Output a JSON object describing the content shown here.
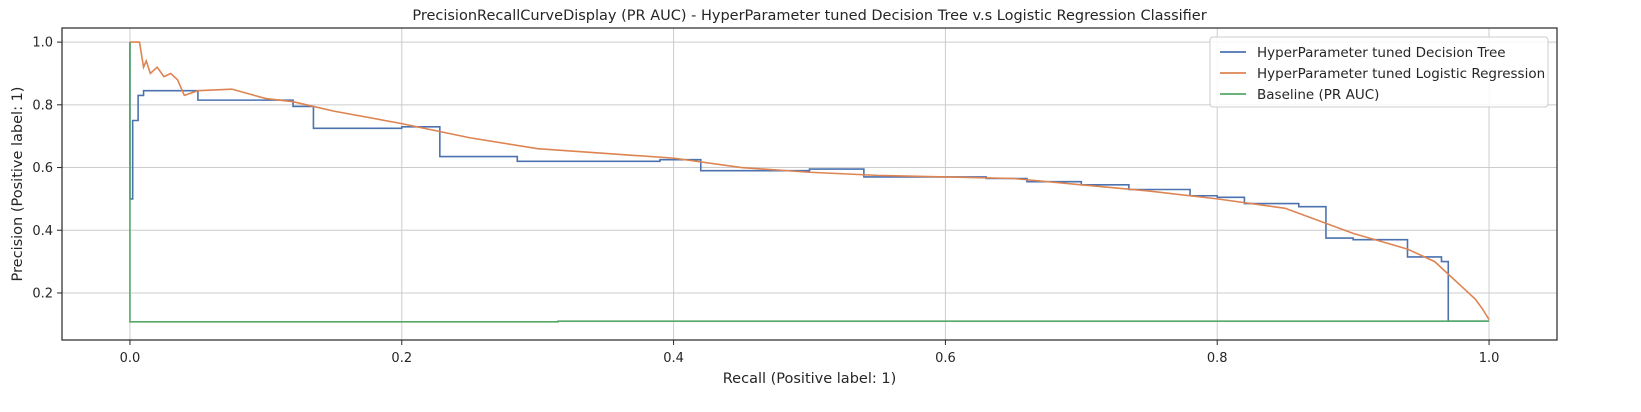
{
  "chart_data": {
    "type": "line",
    "title": "PrecisionRecallCurveDisplay (PR AUC) - HyperParameter tuned Decision Tree v.s Logistic Regression Classifier",
    "xlabel": "Recall (Positive label: 1)",
    "ylabel": "Precision (Positive label: 1)",
    "xlim": [
      -0.05,
      1.05
    ],
    "ylim": [
      0.05,
      1.045
    ],
    "xticks": [
      0.0,
      0.2,
      0.4,
      0.6,
      0.8,
      1.0
    ],
    "xtick_labels": [
      "0.0",
      "0.2",
      "0.4",
      "0.6",
      "0.8",
      "1.0"
    ],
    "yticks": [
      0.2,
      0.4,
      0.6,
      0.8,
      1.0
    ],
    "ytick_labels": [
      "0.2",
      "0.4",
      "0.6",
      "0.8",
      "1.0"
    ],
    "grid": true,
    "legend_position": "top-right",
    "series": [
      {
        "name": "HyperParameter tuned Decision Tree",
        "color": "#4c72b0",
        "step": true,
        "x": [
          0.0,
          0.0,
          0.002,
          0.006,
          0.01,
          0.05,
          0.12,
          0.135,
          0.2,
          0.228,
          0.285,
          0.39,
          0.42,
          0.5,
          0.52,
          0.54,
          0.6,
          0.63,
          0.66,
          0.7,
          0.735,
          0.78,
          0.8,
          0.82,
          0.86,
          0.88,
          0.9,
          0.94,
          0.965,
          0.97,
          1.0
        ],
        "y": [
          1.0,
          0.5,
          0.75,
          0.83,
          0.845,
          0.815,
          0.795,
          0.725,
          0.73,
          0.635,
          0.62,
          0.625,
          0.59,
          0.595,
          0.595,
          0.57,
          0.57,
          0.565,
          0.555,
          0.545,
          0.53,
          0.51,
          0.505,
          0.485,
          0.475,
          0.375,
          0.37,
          0.315,
          0.3,
          0.11,
          0.11
        ]
      },
      {
        "name": "HyperParameter tuned Logistic Regression",
        "color": "#dd8452",
        "step": false,
        "x": [
          0.0,
          0.007,
          0.01,
          0.012,
          0.015,
          0.02,
          0.025,
          0.03,
          0.035,
          0.04,
          0.05,
          0.075,
          0.1,
          0.12,
          0.15,
          0.2,
          0.25,
          0.3,
          0.35,
          0.4,
          0.45,
          0.5,
          0.55,
          0.6,
          0.65,
          0.7,
          0.75,
          0.8,
          0.85,
          0.9,
          0.94,
          0.96,
          0.98,
          0.99,
          0.995,
          1.0
        ],
        "y": [
          1.0,
          1.0,
          0.92,
          0.94,
          0.9,
          0.92,
          0.89,
          0.9,
          0.88,
          0.83,
          0.845,
          0.85,
          0.82,
          0.81,
          0.78,
          0.74,
          0.695,
          0.66,
          0.645,
          0.63,
          0.6,
          0.585,
          0.575,
          0.57,
          0.565,
          0.545,
          0.525,
          0.5,
          0.47,
          0.39,
          0.34,
          0.3,
          0.22,
          0.18,
          0.15,
          0.115
        ]
      },
      {
        "name": "Baseline (PR AUC)",
        "color": "#55a868",
        "step": true,
        "x": [
          0.0,
          0.0,
          0.315,
          1.0
        ],
        "y": [
          1.0,
          0.108,
          0.11,
          0.11
        ]
      }
    ]
  }
}
